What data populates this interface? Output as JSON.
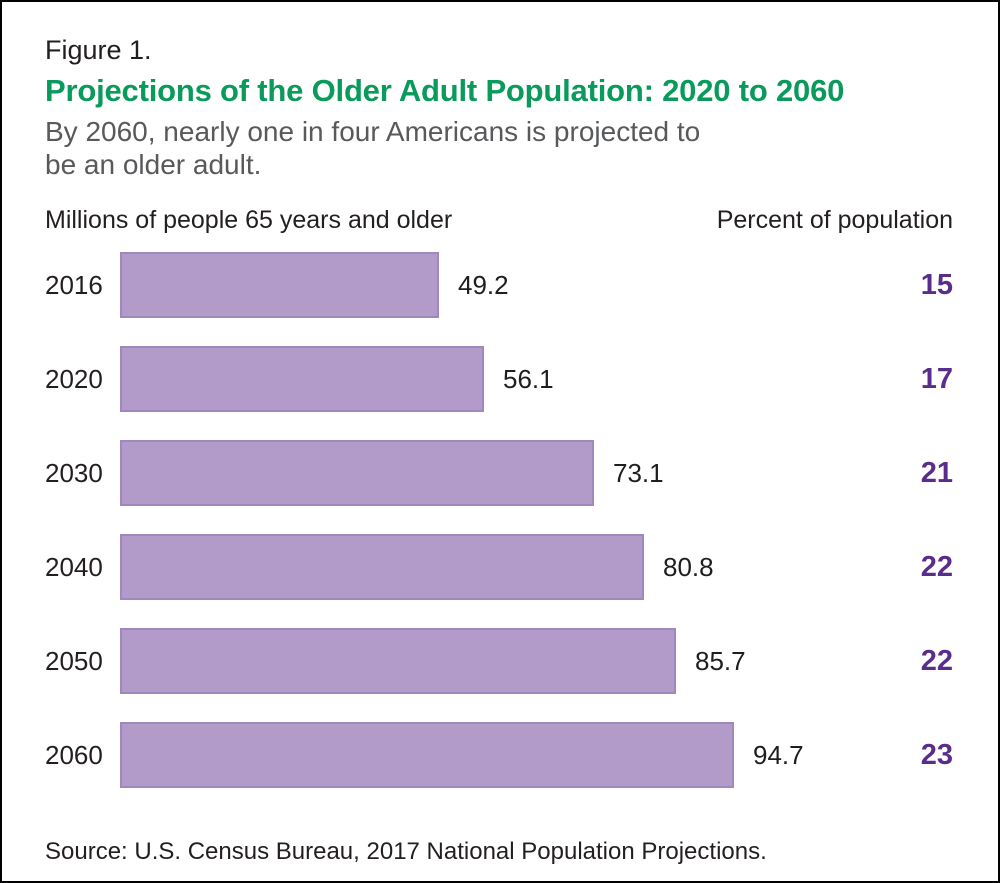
{
  "figure": {
    "label": "Figure 1.",
    "title": "Projections of the Older Adult Population: 2020 to 2060",
    "subtitle_line1": "By 2060, nearly one in four Americans is projected to",
    "subtitle_line2": "be an older adult.",
    "source": "Source: U.S. Census Bureau, 2017 National Population Projections."
  },
  "headers": {
    "left": "Millions of people 65 years and older",
    "right": "Percent of population"
  },
  "colors": {
    "title_green": "#0a9a5c",
    "bar_fill": "#b29bc8",
    "bar_border": "#9f89bc",
    "percent_purple": "#5a2d8c",
    "text_dark": "#231f20",
    "subtitle_gray": "#58595b"
  },
  "chart_data": {
    "type": "bar",
    "orientation": "horizontal",
    "title": "Projections of the Older Adult Population: 2020 to 2060",
    "value_axis_label": "Millions of people 65 years and older",
    "secondary_axis_label": "Percent of population",
    "categories": [
      "2016",
      "2020",
      "2030",
      "2040",
      "2050",
      "2060"
    ],
    "series": [
      {
        "name": "Millions of people 65 years and older",
        "values": [
          49.2,
          56.1,
          73.1,
          80.8,
          85.7,
          94.7
        ]
      },
      {
        "name": "Percent of population",
        "values": [
          15,
          17,
          21,
          22,
          22,
          23
        ]
      }
    ],
    "xlim": [
      0,
      94.7
    ],
    "grid": false,
    "legend": "none"
  }
}
